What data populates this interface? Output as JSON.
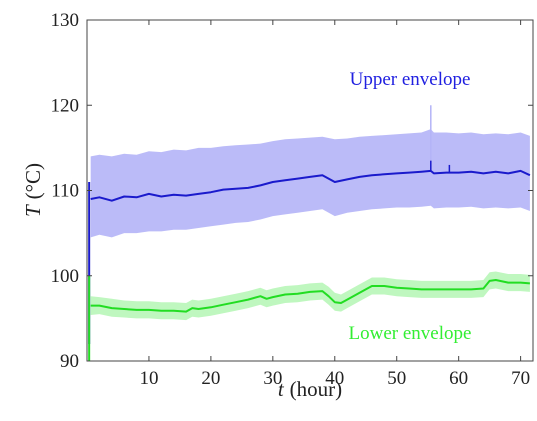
{
  "chart_data": {
    "type": "line",
    "xlabel": {
      "var": "t",
      "unit": "(hour)"
    },
    "ylabel": {
      "var": "T",
      "unit": "(°C)"
    },
    "xlim": [
      0,
      72
    ],
    "ylim": [
      90,
      130
    ],
    "xticks": [
      10,
      20,
      30,
      40,
      50,
      60,
      70
    ],
    "yticks": [
      90,
      100,
      110,
      120,
      130
    ],
    "grid": false,
    "annotations": [
      {
        "text": "Upper envelope",
        "series": "upper",
        "color": "#2020e0"
      },
      {
        "text": "Lower envelope",
        "series": "lower",
        "color": "#33ee33"
      }
    ],
    "series": [
      {
        "key": "upper",
        "line_color": "#1a1acc",
        "band_color": "#b4b4f7",
        "x": [
          0.6,
          2,
          4,
          6,
          8,
          10,
          12,
          14,
          16,
          18,
          20,
          22,
          24,
          26,
          28,
          30,
          32,
          34,
          36,
          38,
          40,
          42,
          44,
          46,
          48,
          50,
          52,
          54,
          55.5,
          56,
          58,
          60,
          62,
          64,
          66,
          68,
          70,
          71.5
        ],
        "y": [
          109.0,
          109.2,
          108.8,
          109.3,
          109.2,
          109.6,
          109.3,
          109.5,
          109.4,
          109.6,
          109.8,
          110.1,
          110.2,
          110.3,
          110.6,
          111.0,
          111.2,
          111.4,
          111.6,
          111.8,
          111.0,
          111.3,
          111.6,
          111.8,
          111.9,
          112.0,
          112.1,
          112.2,
          112.3,
          112.0,
          112.1,
          112.1,
          112.2,
          112.0,
          112.2,
          112.0,
          112.3,
          111.8
        ],
        "band_upper": [
          114.0,
          114.2,
          114.0,
          114.3,
          114.2,
          114.6,
          114.5,
          114.8,
          114.7,
          115.0,
          115.0,
          115.2,
          115.3,
          115.4,
          115.5,
          115.8,
          116.0,
          116.1,
          116.2,
          116.3,
          116.0,
          116.1,
          116.3,
          116.4,
          116.5,
          116.6,
          116.7,
          116.8,
          117.2,
          116.8,
          116.8,
          116.7,
          116.8,
          116.6,
          116.7,
          116.6,
          116.8,
          116.4
        ],
        "band_lower": [
          104.5,
          104.8,
          104.5,
          105.0,
          105.0,
          105.2,
          105.2,
          105.4,
          105.4,
          105.6,
          105.8,
          106.0,
          106.2,
          106.3,
          106.6,
          107.0,
          107.2,
          107.4,
          107.6,
          107.8,
          107.0,
          107.4,
          107.6,
          107.8,
          107.9,
          108.0,
          108.0,
          108.1,
          108.2,
          107.9,
          108.0,
          108.0,
          108.1,
          107.9,
          108.0,
          107.9,
          108.0,
          107.6
        ],
        "spikes": [
          {
            "x": 55.5,
            "y": 120.0
          },
          {
            "x": 55.5,
            "y": 113.5
          },
          {
            "x": 58.5,
            "y": 113.0
          }
        ],
        "startup": {
          "x": 0.35,
          "y_from": 92.0,
          "y_to": 111.0
        }
      },
      {
        "key": "lower",
        "line_color": "#22dd22",
        "band_color": "#b8f6b8",
        "x": [
          0.6,
          2,
          4,
          6,
          8,
          10,
          12,
          14,
          16,
          17,
          18,
          20,
          22,
          24,
          26,
          28,
          29,
          30,
          32,
          34,
          36,
          38,
          39,
          40,
          41,
          42,
          44,
          46,
          48,
          50,
          52,
          54,
          56,
          58,
          60,
          62,
          64,
          65,
          66,
          68,
          70,
          71.5
        ],
        "y": [
          96.5,
          96.5,
          96.2,
          96.1,
          96.0,
          96.0,
          95.9,
          95.9,
          95.8,
          96.2,
          96.1,
          96.3,
          96.6,
          96.9,
          97.2,
          97.6,
          97.3,
          97.5,
          97.8,
          97.9,
          98.1,
          98.2,
          97.6,
          96.9,
          96.8,
          97.2,
          98.0,
          98.8,
          98.8,
          98.6,
          98.5,
          98.4,
          98.4,
          98.4,
          98.4,
          98.4,
          98.5,
          99.4,
          99.5,
          99.2,
          99.2,
          99.1
        ],
        "band_upper": [
          97.6,
          97.5,
          97.3,
          97.1,
          97.0,
          97.0,
          96.9,
          96.9,
          96.8,
          97.2,
          97.1,
          97.3,
          97.6,
          97.9,
          98.2,
          98.6,
          98.3,
          98.5,
          98.8,
          98.9,
          99.1,
          99.2,
          98.7,
          98.0,
          97.8,
          98.2,
          99.0,
          99.8,
          99.8,
          99.6,
          99.5,
          99.4,
          99.4,
          99.4,
          99.4,
          99.4,
          99.5,
          100.4,
          100.5,
          100.2,
          100.2,
          100.1
        ],
        "band_lower": [
          95.4,
          95.5,
          95.2,
          95.1,
          95.0,
          95.0,
          94.9,
          94.9,
          94.8,
          95.2,
          95.1,
          95.3,
          95.6,
          95.9,
          96.2,
          96.6,
          96.3,
          96.5,
          96.8,
          96.9,
          97.1,
          97.2,
          96.6,
          95.9,
          95.8,
          96.2,
          97.0,
          97.8,
          97.8,
          97.6,
          97.5,
          97.4,
          97.4,
          97.4,
          97.4,
          97.4,
          97.5,
          98.4,
          98.5,
          98.2,
          98.2,
          98.1
        ],
        "startup": {
          "x": 0.35,
          "y_from": 90.0,
          "y_to": 100.0
        }
      }
    ]
  }
}
